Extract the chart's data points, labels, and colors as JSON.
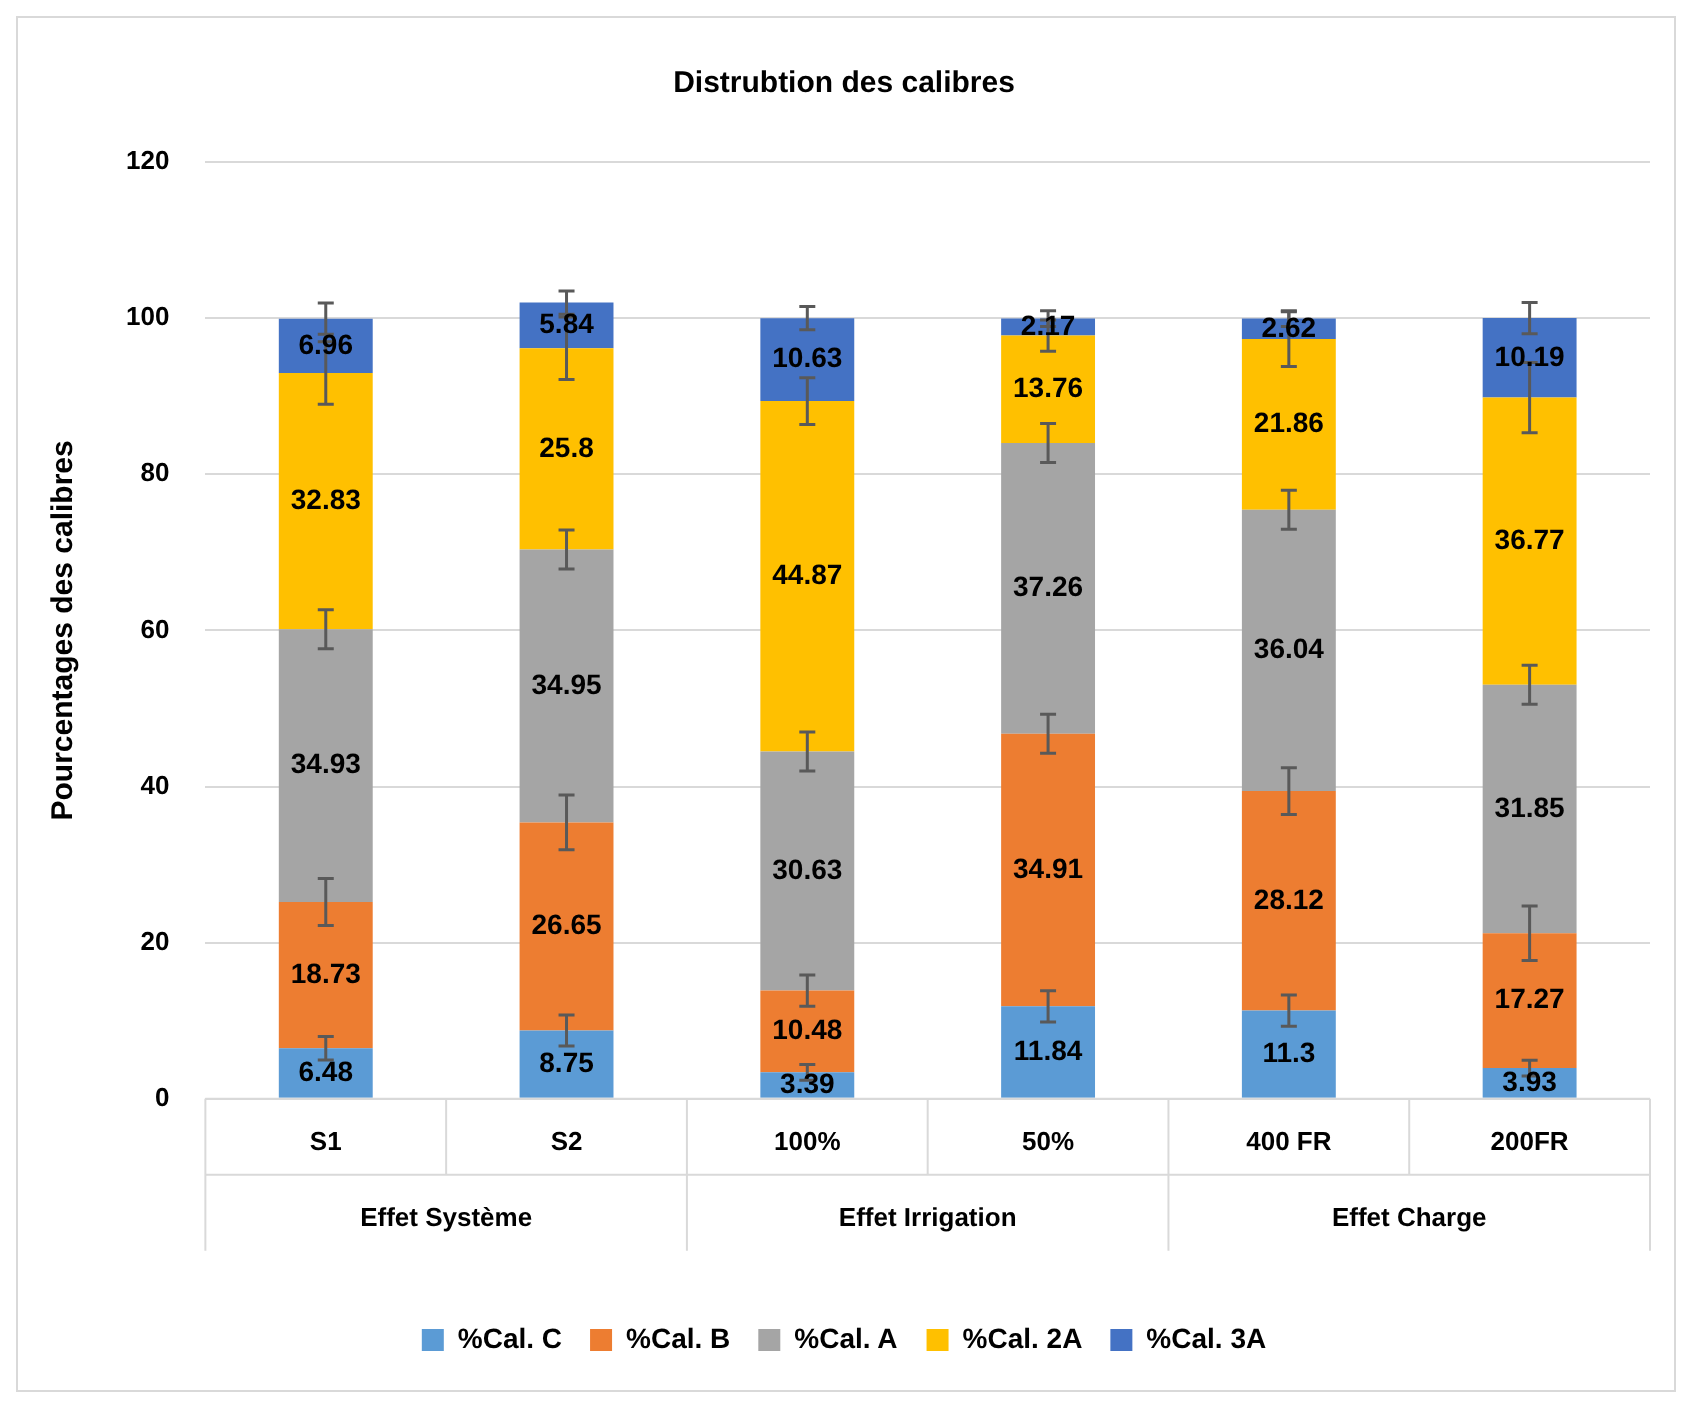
{
  "chart_data": {
    "type": "bar",
    "title": "Distrubtion des calibres",
    "ylabel": "Pourcentages des calibres",
    "categories": [
      "S1",
      "S2",
      "100%",
      "50%",
      "400 FR",
      "200FR"
    ],
    "annotations": [
      "Effet Système",
      "Effet Irrigation",
      "Effet Charge"
    ],
    "stacked": true,
    "ylim": [
      0,
      120
    ],
    "yticks": [
      0,
      20,
      40,
      60,
      80,
      100,
      120
    ],
    "grid": "y",
    "legend": "bottom",
    "data_labels": true,
    "series": [
      {
        "name": "%Cal. C",
        "color": "#5b9bd5",
        "values": [
          6.48,
          8.75,
          3.39,
          11.84,
          11.3,
          3.93
        ],
        "errors": [
          1.5,
          2,
          1,
          2,
          2,
          1
        ]
      },
      {
        "name": "%Cal. B",
        "color": "#ed7d31",
        "values": [
          18.73,
          26.65,
          10.48,
          34.91,
          28.12,
          17.27
        ],
        "errors": [
          3,
          3.5,
          2,
          2.5,
          3,
          3.5
        ]
      },
      {
        "name": "%Cal. A",
        "color": "#a5a5a5",
        "values": [
          34.93,
          34.95,
          30.63,
          37.26,
          36.04,
          31.85
        ],
        "errors": [
          2.5,
          2.5,
          2.5,
          2.5,
          2.5,
          2.5
        ]
      },
      {
        "name": "%Cal. 2A",
        "color": "#ffc000",
        "values": [
          32.83,
          25.8,
          44.87,
          13.76,
          21.86,
          36.77
        ],
        "errors": [
          4,
          4,
          3,
          2,
          3.5,
          4.5
        ]
      },
      {
        "name": "%Cal. 3A",
        "color": "#4472c4",
        "values": [
          6.96,
          5.84,
          10.63,
          2.17,
          2.62,
          10.19
        ],
        "errors": [
          2,
          1.5,
          1.5,
          1,
          1,
          2
        ]
      }
    ]
  }
}
